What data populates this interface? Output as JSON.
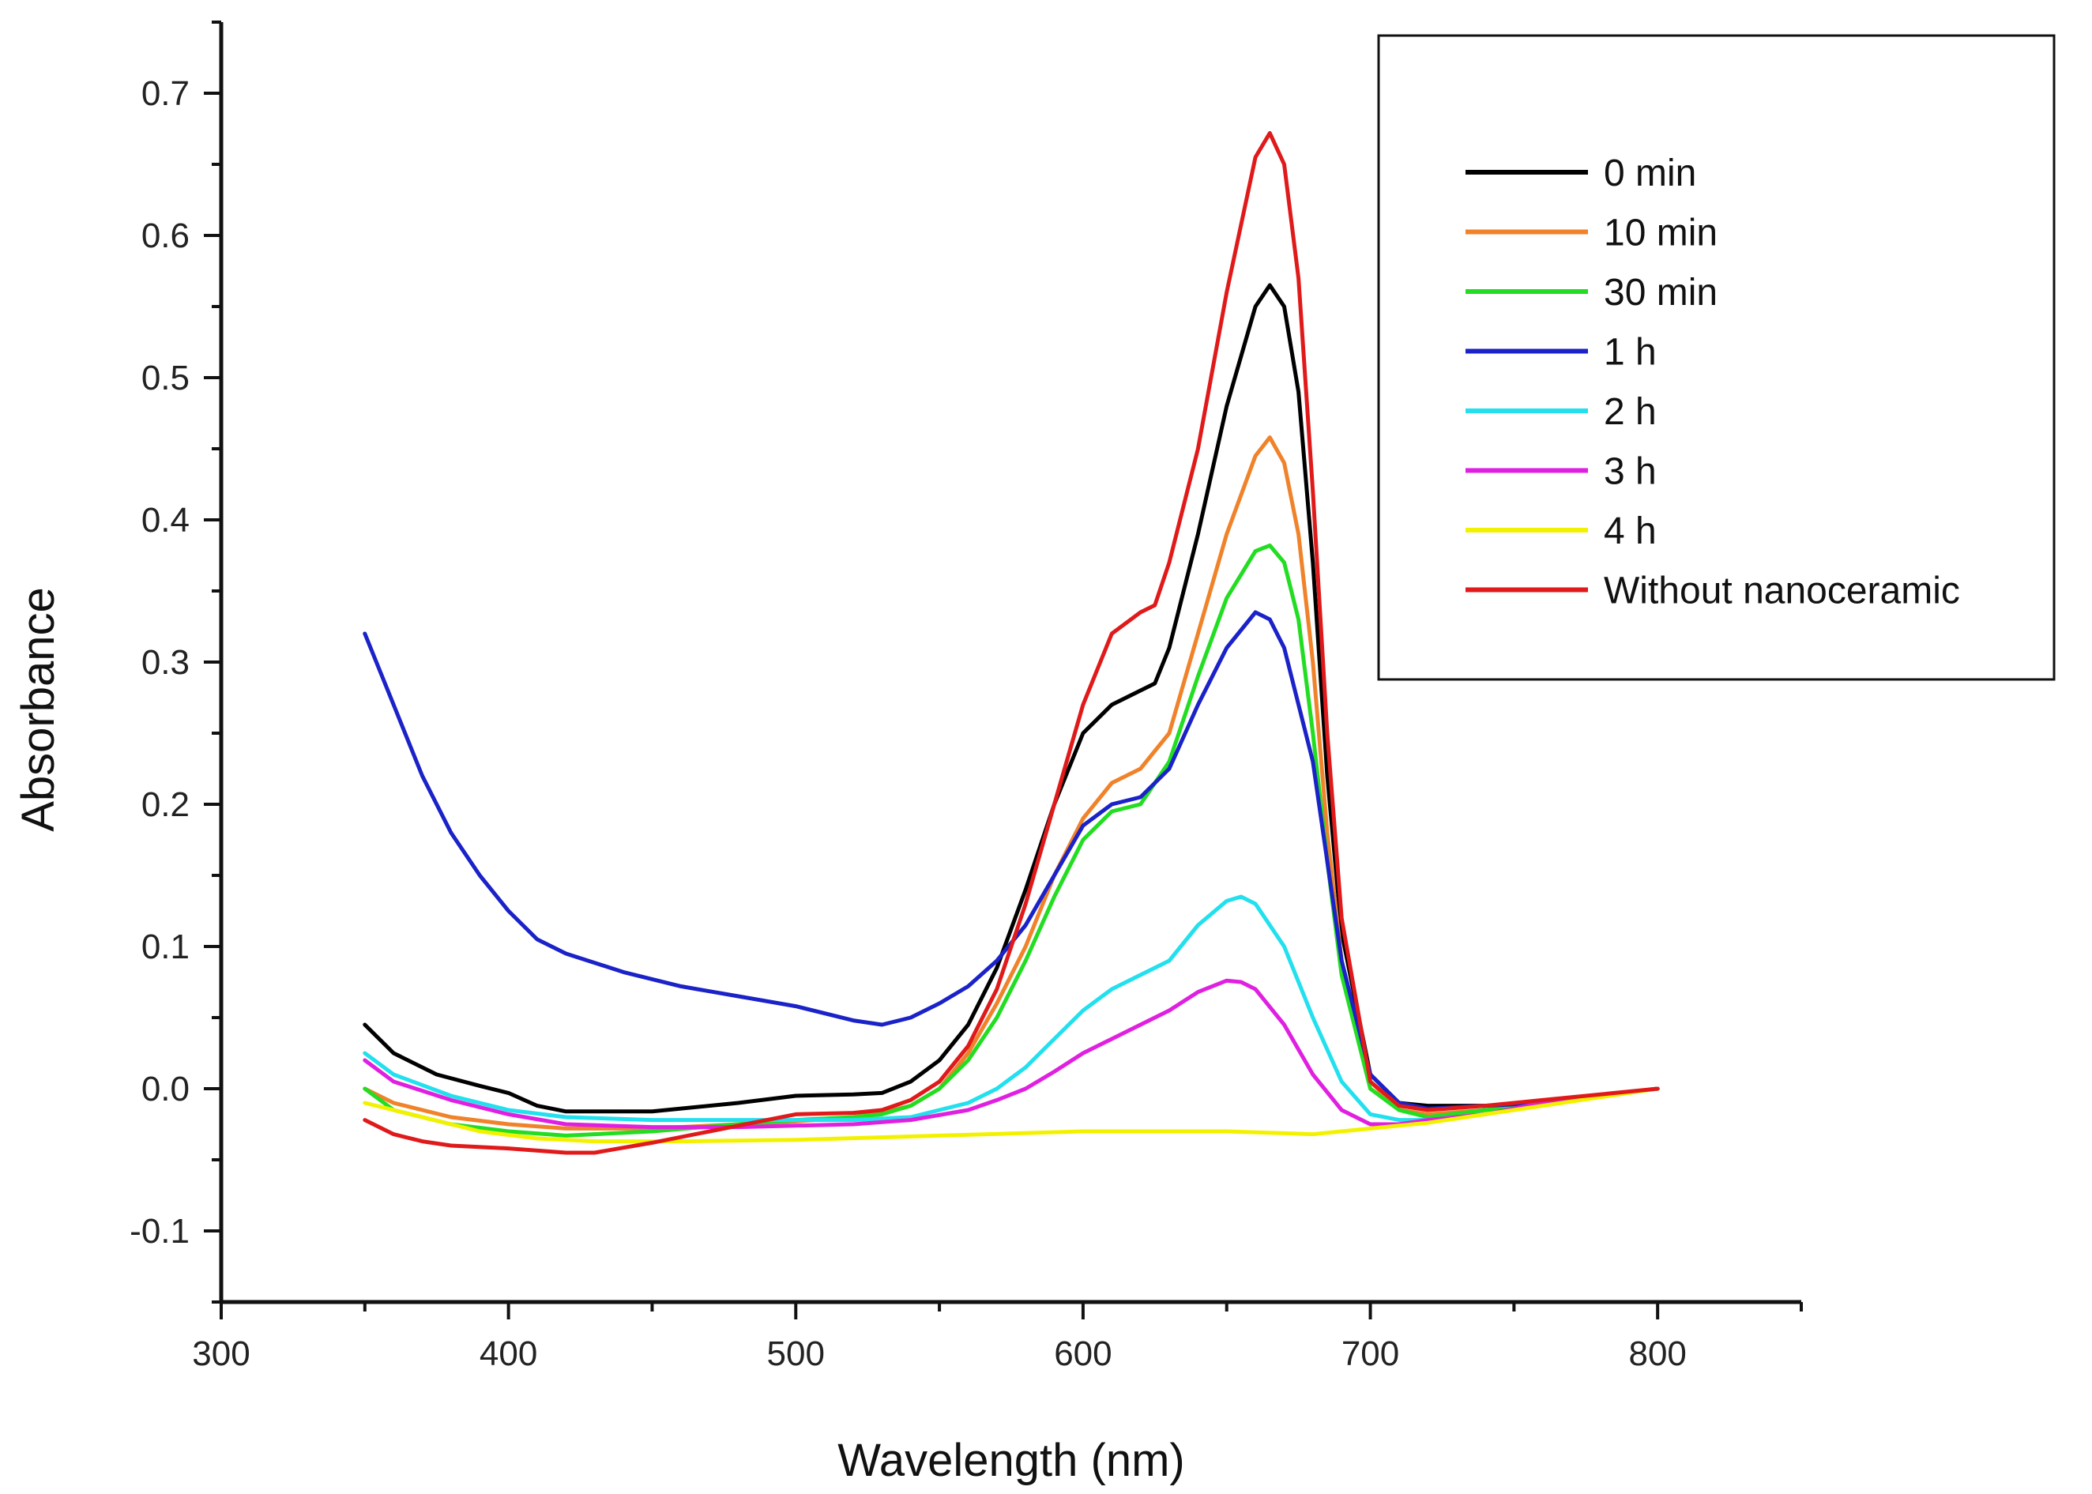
{
  "chart_data": {
    "type": "line",
    "title": "",
    "xlabel": "Wavelength (nm)",
    "ylabel": "Absorbance",
    "xlim": [
      300,
      850
    ],
    "ylim": [
      -0.15,
      0.75
    ],
    "xticks": [
      300,
      400,
      500,
      600,
      700,
      800
    ],
    "xtick_labels": [
      "300",
      "400",
      "500",
      "600",
      "700",
      "800"
    ],
    "yticks": [
      -0.1,
      0.0,
      0.1,
      0.2,
      0.3,
      0.4,
      0.5,
      0.6,
      0.7
    ],
    "ytick_labels": [
      "-0.1",
      "0.0",
      "0.1",
      "0.2",
      "0.3",
      "0.4",
      "0.5",
      "0.6",
      "0.7"
    ],
    "grid": false,
    "legend_position": "top-right",
    "series": [
      {
        "name": "0 min",
        "color": "#000000",
        "points": [
          [
            350,
            0.045
          ],
          [
            360,
            0.025
          ],
          [
            375,
            0.01
          ],
          [
            390,
            0.002
          ],
          [
            400,
            -0.003
          ],
          [
            410,
            -0.012
          ],
          [
            420,
            -0.016
          ],
          [
            450,
            -0.016
          ],
          [
            480,
            -0.01
          ],
          [
            500,
            -0.005
          ],
          [
            520,
            -0.004
          ],
          [
            530,
            -0.003
          ],
          [
            540,
            0.005
          ],
          [
            550,
            0.02
          ],
          [
            560,
            0.045
          ],
          [
            570,
            0.085
          ],
          [
            580,
            0.14
          ],
          [
            590,
            0.2
          ],
          [
            600,
            0.25
          ],
          [
            610,
            0.27
          ],
          [
            620,
            0.28
          ],
          [
            625,
            0.285
          ],
          [
            630,
            0.31
          ],
          [
            640,
            0.39
          ],
          [
            650,
            0.48
          ],
          [
            660,
            0.55
          ],
          [
            665,
            0.565
          ],
          [
            670,
            0.55
          ],
          [
            675,
            0.49
          ],
          [
            680,
            0.37
          ],
          [
            685,
            0.22
          ],
          [
            690,
            0.11
          ],
          [
            700,
            0.01
          ],
          [
            710,
            -0.01
          ],
          [
            720,
            -0.012
          ],
          [
            740,
            -0.012
          ],
          [
            760,
            -0.01
          ],
          [
            780,
            -0.005
          ],
          [
            800,
            0.0
          ]
        ]
      },
      {
        "name": "10 min",
        "color": "#f0822a",
        "points": [
          [
            350,
            0.0
          ],
          [
            360,
            -0.01
          ],
          [
            380,
            -0.02
          ],
          [
            400,
            -0.025
          ],
          [
            420,
            -0.028
          ],
          [
            450,
            -0.028
          ],
          [
            480,
            -0.025
          ],
          [
            500,
            -0.023
          ],
          [
            520,
            -0.02
          ],
          [
            530,
            -0.017
          ],
          [
            540,
            -0.012
          ],
          [
            550,
            0.0
          ],
          [
            560,
            0.025
          ],
          [
            570,
            0.06
          ],
          [
            580,
            0.1
          ],
          [
            590,
            0.15
          ],
          [
            600,
            0.19
          ],
          [
            610,
            0.215
          ],
          [
            620,
            0.225
          ],
          [
            630,
            0.25
          ],
          [
            640,
            0.32
          ],
          [
            650,
            0.39
          ],
          [
            660,
            0.445
          ],
          [
            665,
            0.458
          ],
          [
            670,
            0.44
          ],
          [
            675,
            0.39
          ],
          [
            680,
            0.3
          ],
          [
            685,
            0.18
          ],
          [
            690,
            0.09
          ],
          [
            700,
            0.005
          ],
          [
            710,
            -0.015
          ],
          [
            720,
            -0.018
          ],
          [
            740,
            -0.015
          ],
          [
            760,
            -0.01
          ],
          [
            780,
            -0.005
          ],
          [
            800,
            0.0
          ]
        ]
      },
      {
        "name": "30 min",
        "color": "#22dd22",
        "points": [
          [
            350,
            0.0
          ],
          [
            360,
            -0.015
          ],
          [
            380,
            -0.025
          ],
          [
            400,
            -0.03
          ],
          [
            420,
            -0.033
          ],
          [
            450,
            -0.03
          ],
          [
            480,
            -0.025
          ],
          [
            500,
            -0.022
          ],
          [
            520,
            -0.02
          ],
          [
            530,
            -0.018
          ],
          [
            540,
            -0.012
          ],
          [
            550,
            0.0
          ],
          [
            560,
            0.02
          ],
          [
            570,
            0.05
          ],
          [
            580,
            0.09
          ],
          [
            590,
            0.135
          ],
          [
            600,
            0.175
          ],
          [
            610,
            0.195
          ],
          [
            620,
            0.2
          ],
          [
            630,
            0.23
          ],
          [
            640,
            0.29
          ],
          [
            650,
            0.345
          ],
          [
            660,
            0.378
          ],
          [
            665,
            0.382
          ],
          [
            670,
            0.37
          ],
          [
            675,
            0.33
          ],
          [
            680,
            0.25
          ],
          [
            685,
            0.16
          ],
          [
            690,
            0.08
          ],
          [
            700,
            0.0
          ],
          [
            710,
            -0.015
          ],
          [
            720,
            -0.02
          ],
          [
            740,
            -0.015
          ],
          [
            760,
            -0.01
          ],
          [
            780,
            -0.005
          ],
          [
            800,
            0.0
          ]
        ]
      },
      {
        "name": "1 h",
        "color": "#1a22c8",
        "points": [
          [
            350,
            0.32
          ],
          [
            360,
            0.27
          ],
          [
            370,
            0.22
          ],
          [
            380,
            0.18
          ],
          [
            390,
            0.15
          ],
          [
            400,
            0.125
          ],
          [
            410,
            0.105
          ],
          [
            420,
            0.095
          ],
          [
            440,
            0.082
          ],
          [
            460,
            0.072
          ],
          [
            480,
            0.065
          ],
          [
            500,
            0.058
          ],
          [
            520,
            0.048
          ],
          [
            530,
            0.045
          ],
          [
            540,
            0.05
          ],
          [
            550,
            0.06
          ],
          [
            560,
            0.072
          ],
          [
            570,
            0.09
          ],
          [
            580,
            0.115
          ],
          [
            590,
            0.15
          ],
          [
            600,
            0.185
          ],
          [
            610,
            0.2
          ],
          [
            620,
            0.205
          ],
          [
            630,
            0.225
          ],
          [
            640,
            0.27
          ],
          [
            650,
            0.31
          ],
          [
            660,
            0.335
          ],
          [
            665,
            0.33
          ],
          [
            670,
            0.31
          ],
          [
            680,
            0.23
          ],
          [
            685,
            0.16
          ],
          [
            690,
            0.09
          ],
          [
            700,
            0.01
          ],
          [
            710,
            -0.01
          ],
          [
            720,
            -0.014
          ],
          [
            740,
            -0.012
          ],
          [
            760,
            -0.01
          ],
          [
            780,
            -0.005
          ],
          [
            800,
            0.0
          ]
        ]
      },
      {
        "name": "2 h",
        "color": "#22e0ee",
        "points": [
          [
            350,
            0.025
          ],
          [
            360,
            0.01
          ],
          [
            380,
            -0.005
          ],
          [
            400,
            -0.015
          ],
          [
            420,
            -0.02
          ],
          [
            450,
            -0.022
          ],
          [
            480,
            -0.022
          ],
          [
            500,
            -0.022
          ],
          [
            520,
            -0.022
          ],
          [
            540,
            -0.02
          ],
          [
            560,
            -0.01
          ],
          [
            570,
            0.0
          ],
          [
            580,
            0.015
          ],
          [
            590,
            0.035
          ],
          [
            600,
            0.055
          ],
          [
            610,
            0.07
          ],
          [
            620,
            0.08
          ],
          [
            630,
            0.09
          ],
          [
            640,
            0.115
          ],
          [
            650,
            0.132
          ],
          [
            655,
            0.135
          ],
          [
            660,
            0.13
          ],
          [
            670,
            0.1
          ],
          [
            680,
            0.05
          ],
          [
            690,
            0.005
          ],
          [
            700,
            -0.018
          ],
          [
            710,
            -0.022
          ],
          [
            720,
            -0.022
          ],
          [
            740,
            -0.018
          ],
          [
            760,
            -0.01
          ],
          [
            780,
            -0.005
          ],
          [
            800,
            0.0
          ]
        ]
      },
      {
        "name": "3 h",
        "color": "#e020e0",
        "points": [
          [
            350,
            0.02
          ],
          [
            360,
            0.005
          ],
          [
            380,
            -0.008
          ],
          [
            400,
            -0.018
          ],
          [
            420,
            -0.025
          ],
          [
            450,
            -0.027
          ],
          [
            480,
            -0.027
          ],
          [
            500,
            -0.026
          ],
          [
            520,
            -0.025
          ],
          [
            540,
            -0.022
          ],
          [
            560,
            -0.015
          ],
          [
            570,
            -0.008
          ],
          [
            580,
            0.0
          ],
          [
            590,
            0.012
          ],
          [
            600,
            0.025
          ],
          [
            610,
            0.035
          ],
          [
            620,
            0.045
          ],
          [
            630,
            0.055
          ],
          [
            640,
            0.068
          ],
          [
            650,
            0.076
          ],
          [
            655,
            0.075
          ],
          [
            660,
            0.07
          ],
          [
            670,
            0.045
          ],
          [
            680,
            0.01
          ],
          [
            690,
            -0.015
          ],
          [
            700,
            -0.025
          ],
          [
            710,
            -0.025
          ],
          [
            720,
            -0.022
          ],
          [
            740,
            -0.018
          ],
          [
            760,
            -0.01
          ],
          [
            780,
            -0.005
          ],
          [
            800,
            0.0
          ]
        ]
      },
      {
        "name": "4 h",
        "color": "#f2f200",
        "points": [
          [
            350,
            -0.01
          ],
          [
            370,
            -0.02
          ],
          [
            390,
            -0.03
          ],
          [
            410,
            -0.035
          ],
          [
            430,
            -0.037
          ],
          [
            460,
            -0.037
          ],
          [
            500,
            -0.036
          ],
          [
            550,
            -0.033
          ],
          [
            600,
            -0.03
          ],
          [
            650,
            -0.03
          ],
          [
            680,
            -0.032
          ],
          [
            700,
            -0.028
          ],
          [
            720,
            -0.024
          ],
          [
            740,
            -0.018
          ],
          [
            760,
            -0.012
          ],
          [
            780,
            -0.006
          ],
          [
            800,
            0.0
          ]
        ]
      },
      {
        "name": "Without nanoceramic",
        "color": "#e01a1a",
        "points": [
          [
            350,
            -0.022
          ],
          [
            360,
            -0.032
          ],
          [
            370,
            -0.037
          ],
          [
            380,
            -0.04
          ],
          [
            400,
            -0.042
          ],
          [
            420,
            -0.045
          ],
          [
            430,
            -0.045
          ],
          [
            450,
            -0.038
          ],
          [
            470,
            -0.03
          ],
          [
            490,
            -0.022
          ],
          [
            500,
            -0.018
          ],
          [
            520,
            -0.017
          ],
          [
            530,
            -0.015
          ],
          [
            540,
            -0.008
          ],
          [
            550,
            0.005
          ],
          [
            560,
            0.03
          ],
          [
            570,
            0.07
          ],
          [
            580,
            0.13
          ],
          [
            590,
            0.2
          ],
          [
            600,
            0.27
          ],
          [
            610,
            0.32
          ],
          [
            620,
            0.335
          ],
          [
            625,
            0.34
          ],
          [
            630,
            0.37
          ],
          [
            640,
            0.45
          ],
          [
            650,
            0.56
          ],
          [
            660,
            0.655
          ],
          [
            665,
            0.672
          ],
          [
            670,
            0.65
          ],
          [
            675,
            0.57
          ],
          [
            680,
            0.42
          ],
          [
            685,
            0.25
          ],
          [
            690,
            0.12
          ],
          [
            700,
            0.005
          ],
          [
            710,
            -0.012
          ],
          [
            720,
            -0.015
          ],
          [
            740,
            -0.012
          ],
          [
            760,
            -0.008
          ],
          [
            780,
            -0.004
          ],
          [
            800,
            0.0
          ]
        ]
      }
    ]
  }
}
